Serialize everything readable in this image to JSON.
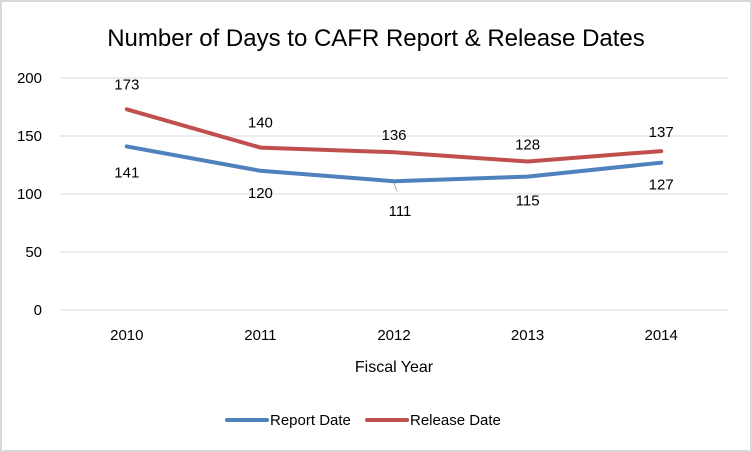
{
  "chart_data": {
    "type": "line",
    "title": "Number of Days to CAFR Report & Release Dates",
    "xlabel": "Fiscal Year",
    "ylabel": "",
    "categories": [
      "2010",
      "2011",
      "2012",
      "2013",
      "2014"
    ],
    "ylim": [
      0,
      200
    ],
    "yticks": [
      "0",
      "50",
      "100",
      "150",
      "200"
    ],
    "grid": true,
    "legend_position": "bottom",
    "series": [
      {
        "name": "Report Date",
        "color": "#4f81bd",
        "values": [
          141,
          120,
          111,
          115,
          127
        ],
        "labels": [
          "141",
          "120",
          "111",
          "115",
          "127"
        ]
      },
      {
        "name": "Release Date",
        "color": "#c0504d",
        "values": [
          173,
          140,
          136,
          128,
          137
        ],
        "labels": [
          "173",
          "140",
          "136",
          "128",
          "137"
        ]
      }
    ]
  }
}
